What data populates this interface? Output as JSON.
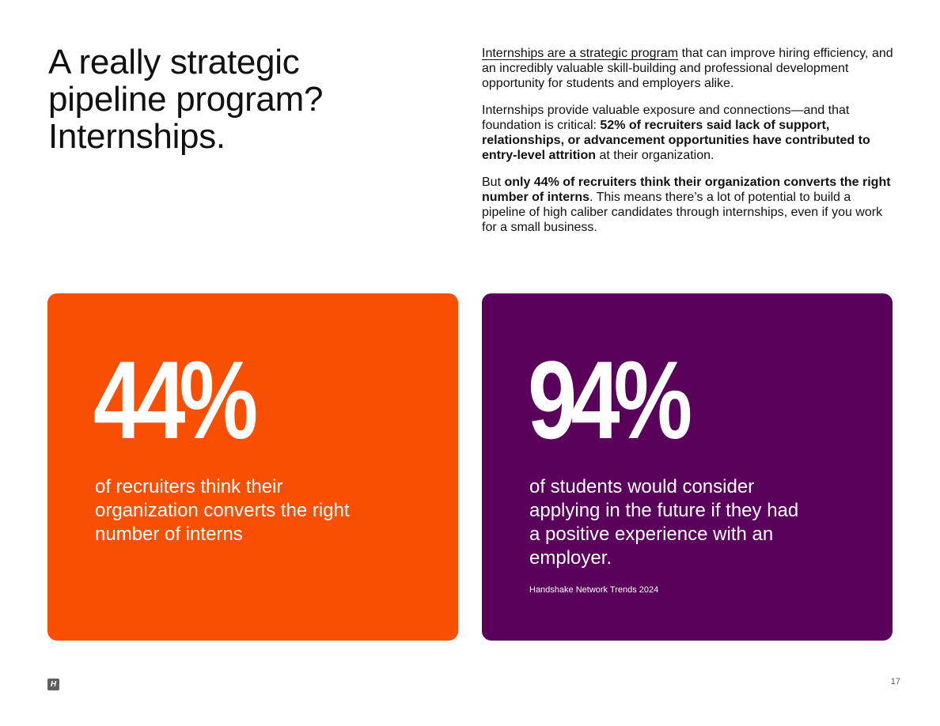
{
  "headline": {
    "line1": "A really strategic",
    "line2": "pipeline program?",
    "line3": "Internships."
  },
  "paragraphs": {
    "p1_link": "Internships are a strategic program",
    "p1_rest": " that can improve hiring efficiency, and an incredibly valuable skill-building and professional development opportunity for students and employers alike.",
    "p2_start": "Internships provide valuable exposure and connections—and that foundation is critical: ",
    "p2_bold": "52% of recruiters said lack of support, relationships, or advancement opportunities have contributed to entry-level attrition",
    "p2_end": " at their organization.",
    "p3_start": "But ",
    "p3_bold": "only 44% of recruiters think their organization converts the right number of interns",
    "p3_end": ". This means there’s a lot of potential to build a pipeline of high caliber candidates through internships, even if you work for a small business."
  },
  "stats": {
    "left": {
      "value": "44%",
      "description": "of recruiters think their organization converts the right number of interns",
      "color": "#f84f03"
    },
    "right": {
      "value": "94%",
      "description": "of students would consider applying in the future if they had a positive experience with an employer.",
      "source": "Handshake Network Trends 2024",
      "color": "#5a015b"
    }
  },
  "footer": {
    "logo_letter": "H",
    "page_number": "17"
  }
}
